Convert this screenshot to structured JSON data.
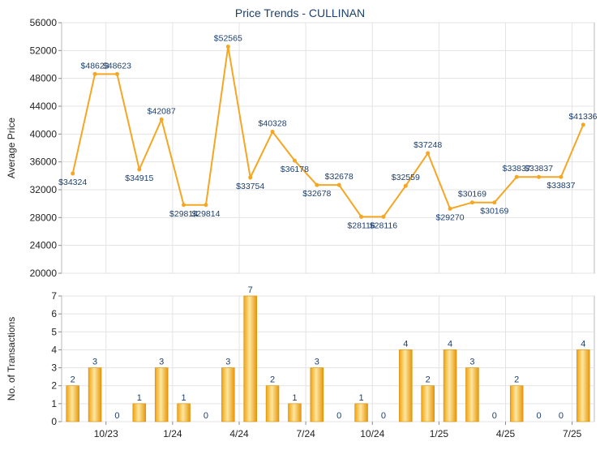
{
  "chart_data": [
    {
      "type": "line",
      "title": "Price Trends - CULLINAN",
      "ylabel": "Average Price",
      "ylim": [
        20000,
        56000
      ],
      "yticks": [
        20000,
        24000,
        28000,
        32000,
        36000,
        40000,
        44000,
        48000,
        52000,
        56000
      ],
      "grid": true,
      "line_color": "#f5a623",
      "values": [
        34324,
        48623,
        48623,
        34915,
        42087,
        29814,
        29814,
        52565,
        33754,
        40328,
        36178,
        32678,
        32678,
        28116,
        28116,
        32559,
        37248,
        29270,
        30169,
        30169,
        33837,
        33837,
        33837,
        41336
      ],
      "data_labels": [
        "$34324",
        "$48623",
        "$48623",
        "$34915",
        "$42087",
        "$29814",
        "$29814",
        "$52565",
        "$33754",
        "$40328",
        "$36178",
        "$32678",
        "$32678",
        "$28116",
        "$28116",
        "$32559",
        "$37248",
        "$29270",
        "$30169",
        "$30169",
        "$33837",
        "$33837",
        "$33837",
        "$41336"
      ]
    },
    {
      "type": "bar",
      "ylabel": "No. of Transactions",
      "ylim": [
        0,
        7
      ],
      "yticks": [
        0,
        1,
        2,
        3,
        4,
        5,
        6,
        7
      ],
      "grid": true,
      "bar_color": "#f5a623",
      "values": [
        2,
        3,
        0,
        1,
        3,
        1,
        0,
        3,
        7,
        2,
        1,
        3,
        0,
        1,
        0,
        4,
        2,
        4,
        3,
        0,
        2,
        0,
        0,
        4
      ],
      "x_tick_labels": [
        "10/23",
        "1/24",
        "4/24",
        "7/24",
        "10/24",
        "1/25",
        "4/25",
        "7/25"
      ],
      "x_tick_positions": [
        2,
        5,
        8,
        11,
        14,
        17,
        20,
        23
      ]
    }
  ]
}
